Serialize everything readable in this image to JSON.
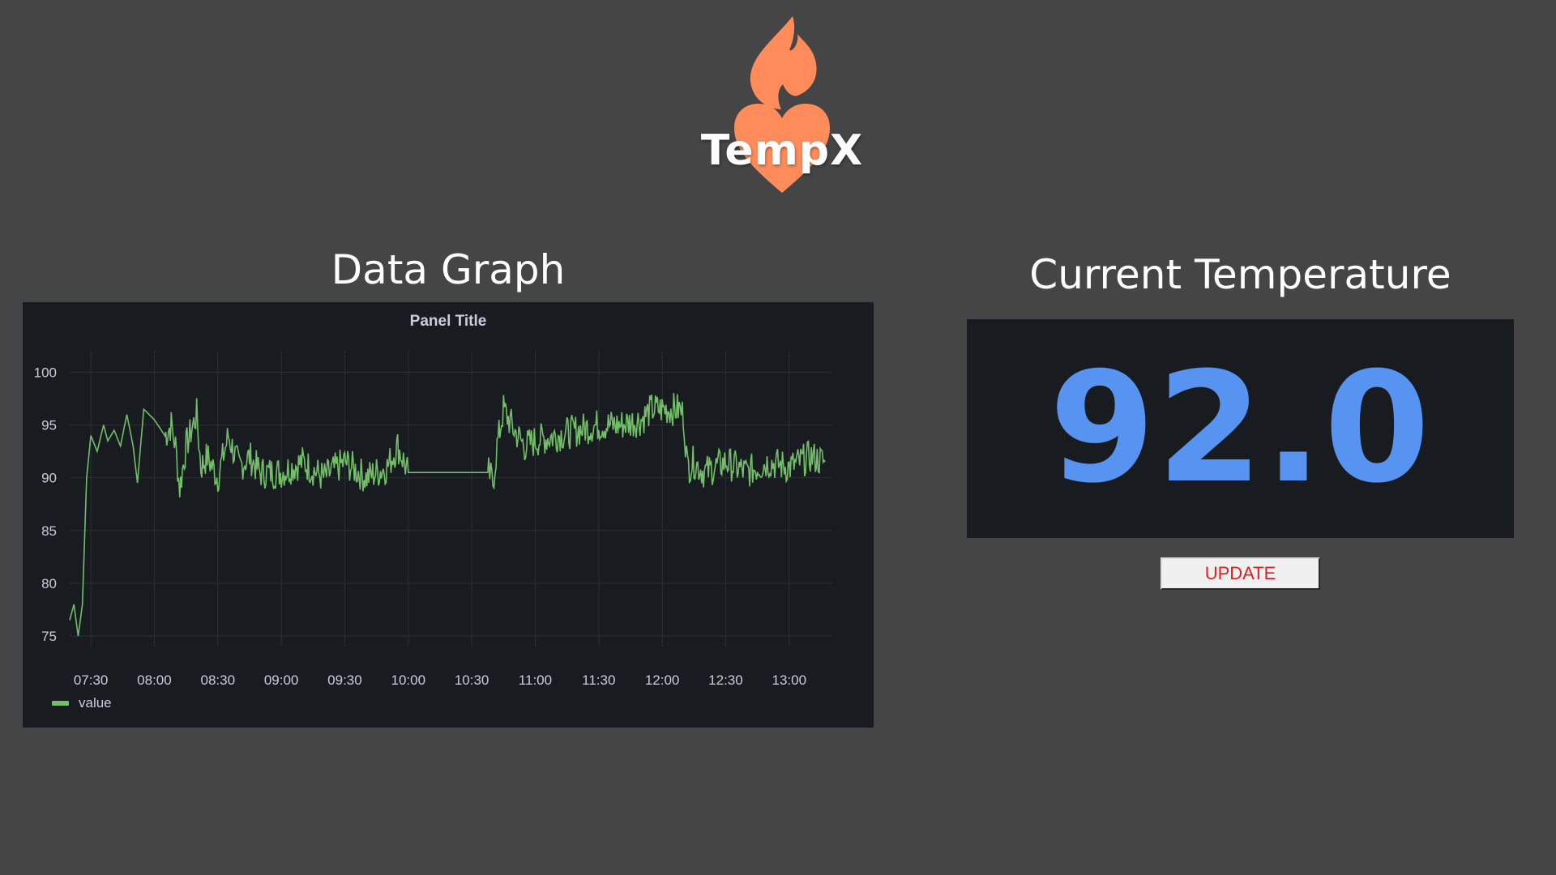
{
  "logo": {
    "text": "TempX",
    "flame_color": "#ff8c5a",
    "heart_color": "#ff8c5a"
  },
  "graph_section": {
    "title": "Data Graph",
    "panel_title": "Panel Title"
  },
  "temperature_section": {
    "title": "Current Temperature",
    "value": "92.0",
    "value_color": "#5794f2"
  },
  "update_button": {
    "label": "UPDATE",
    "text_color": "#e02020"
  },
  "chart_data": {
    "type": "line",
    "title": "Panel Title",
    "xlabel": "",
    "ylabel": "",
    "x_ticks": [
      "07:30",
      "08:00",
      "08:30",
      "09:00",
      "09:30",
      "10:00",
      "10:30",
      "11:00",
      "11:30",
      "12:00",
      "12:30",
      "13:00"
    ],
    "y_ticks": [
      75,
      80,
      85,
      90,
      95,
      100
    ],
    "ylim": [
      74,
      100.5
    ],
    "xlim": [
      "07:20",
      "13:20"
    ],
    "grid": true,
    "legend": "bottom-left",
    "series": [
      {
        "name": "value",
        "color": "#73bf69",
        "x": [
          "07:20",
          "07:22",
          "07:24",
          "07:26",
          "07:28",
          "07:30",
          "07:33",
          "07:36",
          "07:38",
          "07:41",
          "07:44",
          "07:47",
          "07:50",
          "07:52",
          "07:55",
          "08:00",
          "08:05",
          "08:08",
          "08:10",
          "08:12",
          "08:15",
          "08:20",
          "08:22",
          "08:25",
          "08:30",
          "08:35",
          "08:40",
          "08:45",
          "08:50",
          "09:00",
          "09:10",
          "09:20",
          "09:30",
          "09:40",
          "09:50",
          "09:55",
          "10:00",
          "10:10",
          "10:20",
          "10:30",
          "10:35",
          "10:38",
          "10:40",
          "10:42",
          "10:45",
          "10:50",
          "10:55",
          "11:00",
          "11:10",
          "11:20",
          "11:30",
          "11:40",
          "11:50",
          "11:55",
          "12:00",
          "12:05",
          "12:08",
          "12:10",
          "12:12",
          "12:15",
          "12:20",
          "12:30",
          "12:40",
          "12:50",
          "13:00",
          "13:10",
          "13:17"
        ],
        "values": [
          76.5,
          78,
          75,
          78,
          90,
          94,
          92.5,
          95,
          93.5,
          94.5,
          93,
          96,
          93,
          89.5,
          96.5,
          95.5,
          94,
          95,
          93,
          89,
          93,
          96,
          91,
          92,
          90,
          94,
          91,
          92,
          90.5,
          90.5,
          91.5,
          90,
          91.5,
          90,
          91,
          93,
          90.5,
          90.5,
          90.5,
          90.5,
          90.5,
          90.5,
          89.5,
          93,
          96.5,
          94.5,
          93,
          93.5,
          94,
          94.5,
          95,
          95,
          95.5,
          96.5,
          96.5,
          96.5,
          96.5,
          96,
          91,
          91.5,
          90.5,
          91.5,
          90.5,
          91.5,
          91,
          92,
          91.5
        ]
      }
    ]
  }
}
